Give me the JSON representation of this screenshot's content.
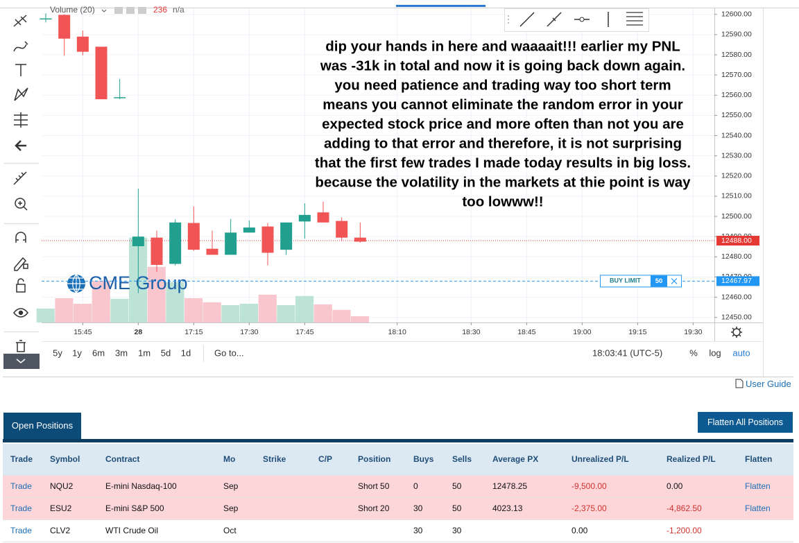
{
  "chart_data": {
    "type": "candlestick",
    "indicator": {
      "name": "Volume (20)",
      "value": 236,
      "extra": "n/a"
    },
    "watermark": "CME Group",
    "annotation": [
      "dip your hands in here and waaaait!!! earlier my PNL",
      "was -31k in total and now it is going back down again.",
      "you need patience and trading way too short term",
      "means you cannot eliminate the random error in your",
      "expected stock price and more often than not you are",
      "adding to that error and therefore, it is not surprising",
      "that the first few trades I made today results in big loss.",
      "because the volatility in the markets at thie point is way",
      "too lowww!!"
    ],
    "categories": [
      null,
      null,
      null,
      null,
      null,
      null,
      null,
      null,
      null,
      null,
      null,
      null,
      null,
      null,
      null,
      null,
      null,
      null
    ],
    "open": [
      12597.5,
      12599.75,
      12589,
      12584,
      12558.5,
      12485.25,
      12489.5,
      12476.5,
      12496.75,
      12484,
      12481,
      12492,
      12495,
      12483.5,
      12497.5,
      12502,
      12497.75,
      12489.5
    ],
    "high": [
      12600.5,
      12600,
      12592,
      12584,
      12568,
      12513.75,
      12493,
      12498.5,
      12505,
      12493,
      12498.75,
      12498,
      12496.75,
      12497,
      12506.5,
      12507.25,
      12499.5,
      12497
    ],
    "low": [
      12596,
      12579.5,
      12579.75,
      12558,
      12558,
      12462,
      12472.5,
      12475.75,
      12483,
      12481,
      12481,
      12492,
      12475.75,
      12481,
      12489,
      12497,
      12487.75,
      12487
    ],
    "close": [
      12598,
      12588,
      12581.5,
      12558,
      12559,
      12490,
      12476,
      12497,
      12483.5,
      12481,
      12492,
      12494.5,
      12482,
      12497,
      12500.75,
      12497,
      12489.5,
      12487.5
    ],
    "up_color": "#22a08f",
    "down_color": "#f05454",
    "volume": {
      "values": [
        124,
        217,
        167,
        372,
        211,
        756,
        496,
        360,
        217,
        180,
        155,
        167,
        248,
        155,
        236,
        161,
        112,
        56
      ],
      "ylim": [
        0,
        2800
      ],
      "up_color": "#bde3d6",
      "down_color": "#f9c6cd"
    },
    "ylim": [
      12447.5,
      12603
    ],
    "yticks": [
      {
        "value": 12450,
        "label": "12450.00"
      },
      {
        "value": 12460,
        "label": "12460.00"
      },
      {
        "value": 12470,
        "label": "12470.00"
      },
      {
        "value": 12480,
        "label": "12480.00"
      },
      {
        "value": 12490,
        "label": "12490.00"
      },
      {
        "value": 12500,
        "label": "12500.00"
      },
      {
        "value": 12510,
        "label": "12510.00"
      },
      {
        "value": 12520,
        "label": "12520.00"
      },
      {
        "value": 12530,
        "label": "12530.00"
      },
      {
        "value": 12540,
        "label": "12540.00"
      },
      {
        "value": 12550,
        "label": "12550.00"
      },
      {
        "value": 12560,
        "label": "12560.00"
      },
      {
        "value": 12570,
        "label": "12570.00"
      },
      {
        "value": 12580,
        "label": "12580.00"
      },
      {
        "value": 12590,
        "label": "12590.00"
      },
      {
        "value": 12600,
        "label": "12600.00"
      }
    ],
    "xlim": [
      -0.225,
      36.15
    ],
    "xticks": [
      {
        "value": 2,
        "label": "15:45"
      },
      {
        "value": 5,
        "label": "28"
      },
      {
        "value": 8,
        "label": "17:15"
      },
      {
        "value": 11,
        "label": "17:30"
      },
      {
        "value": 14,
        "label": "17:45"
      },
      {
        "value": 19,
        "label": "18:10"
      },
      {
        "value": 23,
        "label": "18:30"
      },
      {
        "value": 26,
        "label": "18:45"
      },
      {
        "value": 29,
        "label": "19:00"
      },
      {
        "value": 32,
        "label": "19:15"
      },
      {
        "value": 35,
        "label": "19:30"
      }
    ],
    "grid": true,
    "log_scale": false,
    "price_lines": [
      {
        "value": 12488,
        "label": "12488.00",
        "color": "#e53935",
        "style": "dotted"
      },
      {
        "value": 12467.97,
        "label": "12467.97",
        "color": "#2196f3",
        "style": "dashed",
        "order": {
          "side": "BUY LIMIT",
          "qty": 50
        }
      }
    ],
    "range_buttons": [
      "5y",
      "1y",
      "6m",
      "3m",
      "1m",
      "5d",
      "1d"
    ],
    "goto": "Go to...",
    "clock": "18:03:41 (UTC-5)",
    "scale_buttons": [
      "%",
      "log",
      "auto"
    ]
  },
  "user_guide": "User Guide",
  "tab": "Open Positions",
  "flatten_all": "Flatten All Positions",
  "table": {
    "columns": [
      "Trade",
      "Symbol",
      "Contract",
      "Mo",
      "Strike",
      "C/P",
      "Position",
      "Buys",
      "Sells",
      "Average PX",
      "Unrealized P/L",
      "Realized P/L",
      "Flatten"
    ],
    "rows": [
      [
        "Trade",
        "NQU2",
        "E-mini Nasdaq-100",
        "Sep",
        null,
        null,
        "Short 50",
        "0",
        "50",
        "12478.25",
        "-9,500.00",
        "0.00",
        "Flatten"
      ],
      [
        "Trade",
        "ESU2",
        "E-mini S&P 500",
        "Sep",
        null,
        null,
        "Short 20",
        "30",
        "50",
        "4023.13",
        "-2,375.00",
        "-4,862.50",
        "Flatten"
      ],
      [
        "Trade",
        "CLV2",
        "WTI Crude Oil",
        "Oct",
        null,
        null,
        null,
        "30",
        "30",
        null,
        "0.00",
        "-1,200.00",
        null
      ]
    ]
  }
}
